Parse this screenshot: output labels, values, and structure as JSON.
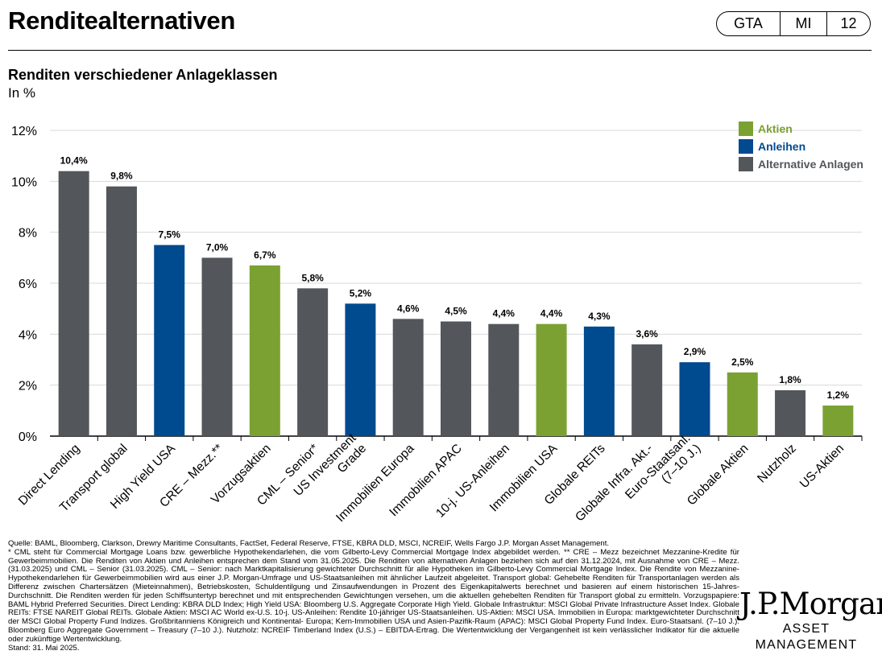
{
  "header": {
    "title": "Renditealternativen",
    "badge": [
      "GTA",
      "MI",
      "12"
    ]
  },
  "colors": {
    "equity": "#7BA133",
    "bond": "#004A8F",
    "alternative": "#53565A",
    "grid": "#D9D9D9",
    "axis": "#000000"
  },
  "chart_data": {
    "type": "bar",
    "title": "Renditen verschiedener Anlageklassen",
    "subtitle": "In %",
    "xlabel": "",
    "ylabel": "",
    "ylim": [
      0,
      12
    ],
    "yticks": [
      0,
      2,
      4,
      6,
      8,
      10,
      12
    ],
    "ytick_labels": [
      "0%",
      "2%",
      "4%",
      "6%",
      "8%",
      "10%",
      "12%"
    ],
    "grid": true,
    "legend_position": "top-right",
    "legend": [
      {
        "name": "Aktien",
        "key": "equity",
        "text_color": "#7BA133"
      },
      {
        "name": "Anleihen",
        "key": "bond",
        "text_color": "#004A8F"
      },
      {
        "name": "Alternative Anlagen",
        "key": "alternative",
        "text_color": "#53565A"
      }
    ],
    "categories": [
      "Direct Lending",
      "Transport global",
      "High Yield USA",
      "CRE – Mezz.**",
      "Vorzugsaktien",
      "CML – Senior*",
      "US Investment\nGrade",
      "Immobilien Europa",
      "Immobilien APAC",
      "10-j. US-Anleihen",
      "Immobilien USA",
      "Globale REITs",
      "Globale Infra. Akt.-",
      "Euro-Staatsanl.\n(7–10 J.)",
      "Globale Aktien",
      "Nutzholz",
      "US-Aktien"
    ],
    "values": [
      10.4,
      9.8,
      7.5,
      7.0,
      6.7,
      5.8,
      5.2,
      4.6,
      4.5,
      4.4,
      4.4,
      4.3,
      3.6,
      2.9,
      2.5,
      1.8,
      1.2
    ],
    "value_labels": [
      "10,4%",
      "9,8%",
      "7,5%",
      "7,0%",
      "6,7%",
      "5,8%",
      "5,2%",
      "4,6%",
      "4,5%",
      "4,4%",
      "4,4%",
      "4,3%",
      "3,6%",
      "2,9%",
      "2,5%",
      "1,8%",
      "1,2%"
    ],
    "groups": [
      "alternative",
      "alternative",
      "bond",
      "alternative",
      "equity",
      "alternative",
      "bond",
      "alternative",
      "alternative",
      "alternative",
      "equity",
      "bond",
      "alternative",
      "bond",
      "equity",
      "alternative",
      "equity"
    ]
  },
  "footnotes": [
    "Quelle: BAML, Bloomberg, Clarkson, Drewry Maritime Consultants, FactSet, Federal Reserve, FTSE, KBRA DLD, MSCI, NCREIF, Wells Fargo J.P. Morgan Asset Management.",
    "* CML steht für Commercial Mortgage Loans bzw. gewerbliche Hypothekendarlehen, die vom Gilberto-Levy Commercial Mortgage Index abgebildet werden. ** CRE – Mezz bezeichnet Mezzanine-Kredite für Gewerbeimmobilien. Die Renditen von Aktien und Anleihen entsprechen dem Stand vom 31.05.2025. Die Renditen von alternativen Anlagen beziehen sich auf den 31.12.2024, mit Ausnahme von CRE – Mezz. (31.03.2025) und CML – Senior (31.03.2025). CML – Senior: nach Marktkapitalisierung gewichteter Durchschnitt für alle Hypotheken im Gilberto-Levy Commercial Mortgage Index. Die Rendite von Mezzanine-Hypothekendarlehen für Gewerbeimmobilien wird aus einer J.P. Morgan-Umfrage und US-Staatsanleihen mit ähnlicher Laufzeit abgeleitet. Transport global: Gehebelte Renditen für Transportanlagen werden als Differenz zwischen Chartersätzen (Mieteinnahmen), Betriebskosten, Schuldentilgung und Zinsaufwendungen in Prozent des Eigenkapitalwerts berechnet und basieren auf einem historischen 15-Jahres-Durchschnitt. Die Renditen werden für jeden Schiffsuntertyp berechnet und mit entsprechenden Gewichtungen versehen, um die aktuellen gehebelten Renditen für Transport global zu ermitteln. Vorzugspapiere: BAML Hybrid Preferred Securities. Direct Lending: KBRA DLD Index; High Yield USA: Bloomberg U.S. Aggregate Corporate High Yield. Globale Infrastruktur: MSCI Global Private Infrastructure Asset Index. Globale REITs: FTSE NAREIT Global REITs. Globale Aktien: MSCI AC World ex-U.S. 10-j. US-Anleihen: Rendite 10-jähriger US-Staatsanleihen. US-Aktien: MSCI USA. Immobilien in Europa: marktgewichteter Durchschnitt der MSCI Global Property Fund Indizes. Großbritanniens Königreich und Kontinental- Europa; Kern-Immobilien USA und Asien-Pazifik-Raum (APAC): MSCI Global Property Fund Index. Euro-Staatsanl. (7–10 J.): Bloomberg Euro Aggregate Government – Treasury (7–10 J.). Nutzholz: NCREIF Timberland Index (U.S.) – EBITDA-Ertrag. Die Wertentwicklung der Vergangenheit ist kein verlässlicher Indikator für die aktuelle oder zukünftige Wertentwicklung.",
    "Stand: 31. Mai 2025."
  ],
  "logo": {
    "name": "J.P.Morgan",
    "tagline": "ASSET MANAGEMENT"
  }
}
